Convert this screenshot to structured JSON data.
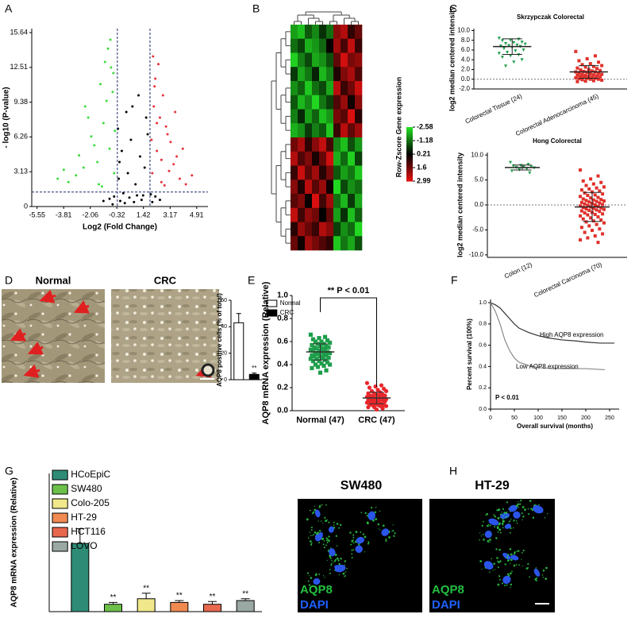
{
  "panel_labels": [
    "A",
    "B",
    "C",
    "D",
    "E",
    "F",
    "G",
    "H"
  ],
  "images": {
    "D": {
      "titles": [
        "Normal",
        "CRC"
      ]
    },
    "H": {
      "titles": [
        "SW480",
        "HT-29"
      ],
      "stains": [
        "AQP8",
        "DAPI"
      ]
    }
  },
  "chart_data": [
    {
      "type": "scatter",
      "xlabel": "Log2 (Fold Change)",
      "ylabel": "- log10 (P-value)",
      "xlim": [
        -5.9,
        5.65
      ],
      "ylim": [
        0,
        16.0
      ],
      "xticks": [
        -5.55,
        -3.81,
        -2.06,
        -0.32,
        1.42,
        3.17,
        4.91
      ],
      "yticks": [
        0,
        3.13,
        6.26,
        9.38,
        12.51,
        15.64
      ],
      "vlines": [
        -0.29,
        1.85
      ],
      "hline": 1.3,
      "threshold_color": "#1a2a6c",
      "series": [
        {
          "color": "#000000",
          "x": [
            -0.1,
            0.2,
            0.5,
            0.8,
            1.0,
            1.3,
            -0.2,
            0.4,
            0.9,
            1.5,
            0.0,
            0.6,
            1.2,
            -0.25,
            1.7,
            0.3,
            0.7,
            1.1,
            -0.5,
            1.9,
            -0.8,
            2.2,
            -1.2,
            2.5,
            -0.6,
            2.0,
            0.1,
            1.4,
            -0.15,
            1.6
          ],
          "values": [
            0.5,
            0.3,
            0.8,
            0.4,
            1.0,
            0.6,
            2.5,
            3.0,
            2.0,
            3.5,
            5.0,
            6.0,
            4.5,
            7.0,
            6.5,
            8.5,
            9.0,
            10.0,
            0.9,
            1.1,
            0.7,
            0.9,
            0.5,
            0.6,
            0.2,
            0.4,
            1.2,
            1.0,
            4.0,
            8.0
          ]
        },
        {
          "color": "#3ddc3d",
          "x": [
            -0.5,
            -0.8,
            -1.2,
            -1.6,
            -2.0,
            -2.5,
            -3.0,
            -3.5,
            -1.0,
            -1.4,
            -0.7,
            -2.2,
            -0.9,
            -1.8,
            -0.6,
            -2.8,
            -1.1,
            -3.8,
            -0.45,
            -1.5,
            -2.4,
            -0.75,
            -1.3,
            -0.55,
            -4.2
          ],
          "values": [
            3.0,
            5.2,
            7.5,
            4.0,
            6.3,
            3.5,
            2.8,
            2.2,
            9.5,
            11.0,
            12.5,
            8.0,
            14.2,
            5.5,
            10.3,
            4.6,
            13.0,
            3.3,
            6.8,
            2.0,
            9.0,
            15.0,
            1.8,
            12.0,
            2.5
          ]
        },
        {
          "color": "#e8303a",
          "x": [
            2.0,
            2.3,
            2.6,
            3.0,
            3.4,
            3.8,
            4.2,
            2.1,
            2.5,
            2.9,
            3.2,
            2.2,
            2.7,
            3.6,
            4.6,
            2.05,
            2.4,
            3.1,
            1.95,
            2.8,
            3.5,
            2.15,
            2.6,
            4.0,
            2.3
          ],
          "values": [
            3.0,
            5.0,
            4.2,
            6.5,
            3.8,
            2.5,
            2.0,
            9.0,
            8.0,
            7.2,
            5.8,
            11.5,
            10.0,
            4.5,
            2.8,
            13.5,
            12.8,
            3.2,
            6.0,
            1.9,
            8.5,
            10.8,
            2.2,
            5.2,
            7.5
          ]
        }
      ]
    },
    {
      "type": "heatmap",
      "colorbar_label": "Row-Zscore Gene expression",
      "colorlim": [
        -2.58,
        2.99
      ],
      "colorbar_ticks": [
        -2.58,
        -1.18,
        0.21,
        1.6,
        2.99
      ],
      "colors": [
        "#22dd22",
        "#000000",
        "#e01010"
      ],
      "matrix": [
        [
          -1.8,
          -2.2,
          -0.9,
          -1.5,
          -0.4,
          -1.2,
          1.9,
          2.4,
          0.8,
          1.5
        ],
        [
          -1.2,
          -0.6,
          -2.0,
          -1.7,
          -1.1,
          0.3,
          2.2,
          1.1,
          2.6,
          0.9
        ],
        [
          -2.4,
          -1.4,
          -0.7,
          -1.9,
          -1.6,
          -0.8,
          1.4,
          2.8,
          1.7,
          2.0
        ],
        [
          -0.5,
          -1.9,
          -1.3,
          -0.2,
          -2.1,
          -1.4,
          0.6,
          1.8,
          2.3,
          1.2
        ],
        [
          -1.6,
          -1.0,
          -2.3,
          -1.2,
          -0.7,
          -1.9,
          2.5,
          0.9,
          1.6,
          2.7
        ],
        [
          -0.9,
          -2.1,
          -1.5,
          -2.5,
          -1.3,
          -0.6,
          1.2,
          2.1,
          0.4,
          1.9
        ],
        [
          -1.4,
          -0.3,
          -1.8,
          -1.0,
          -2.2,
          -1.7,
          1.7,
          1.3,
          2.9,
          0.7
        ],
        [
          -2.0,
          -1.6,
          -0.5,
          -1.4,
          -0.9,
          -2.3,
          0.9,
          2.5,
          1.4,
          2.2
        ],
        [
          1.6,
          2.3,
          0.8,
          1.9,
          2.6,
          1.1,
          -1.5,
          -2.2,
          -0.8,
          -1.7
        ],
        [
          2.4,
          1.2,
          1.8,
          0.5,
          1.5,
          2.8,
          -2.0,
          -1.1,
          -2.4,
          -0.6
        ],
        [
          0.9,
          2.7,
          1.4,
          2.2,
          0.7,
          1.7,
          -0.9,
          -1.8,
          -1.3,
          -2.3
        ],
        [
          1.9,
          0.6,
          2.5,
          1.3,
          2.1,
          0.4,
          -2.5,
          -0.7,
          -1.6,
          -1.2
        ],
        [
          1.3,
          1.8,
          0.3,
          2.9,
          1.0,
          2.2,
          -1.2,
          -2.1,
          -0.5,
          -1.9
        ],
        [
          2.6,
          1.0,
          2.0,
          1.6,
          0.2,
          1.4,
          -1.8,
          -0.4,
          -2.2,
          -1.0
        ],
        [
          0.7,
          2.1,
          1.5,
          0.9,
          2.4,
          1.9,
          -0.6,
          -1.6,
          -1.1,
          -2.5
        ],
        [
          1.5,
          0.4,
          2.2,
          1.7,
          1.2,
          0.8,
          -2.3,
          -1.3,
          -1.9,
          -0.8
        ]
      ]
    },
    {
      "type": "strip",
      "title": "Skrzypczak Colorectal",
      "ylabel": "log2 median centered intensity",
      "categories": [
        "Colorectal Tissue (24)",
        "Colorectal Adenocarcinoma (45)"
      ],
      "ylim": [
        -2,
        10.4
      ],
      "hline": 0,
      "summary_color": "#222222",
      "yticks": [
        {
          "value": -2,
          "label": "-2.0"
        },
        {
          "value": 0,
          "label": "0.0"
        },
        {
          "value": 2,
          "label": "2.0"
        },
        {
          "value": 4,
          "label": "4.0"
        },
        {
          "value": 6,
          "label": "6.0"
        },
        {
          "value": 8,
          "label": "8.0"
        },
        {
          "value": 10,
          "label": "10.0"
        }
      ],
      "series": [
        {
          "color": "#1e9e4a",
          "marker": "triangle",
          "mean": 6.7,
          "sd": 1.6,
          "values": [
            8.4,
            8.2,
            8.0,
            7.9,
            7.6,
            7.5,
            7.3,
            7.2,
            7.0,
            6.9,
            6.8,
            6.7,
            6.5,
            6.3,
            6.0,
            5.8,
            5.5,
            5.3,
            5.0,
            4.8,
            4.5,
            4.0,
            3.5,
            2.7
          ]
        },
        {
          "color": "#e0302a",
          "marker": "square",
          "mean": 1.5,
          "sd": 1.3,
          "values": [
            5.7,
            4.8,
            4.2,
            3.8,
            3.5,
            3.2,
            3.0,
            2.8,
            2.6,
            2.5,
            2.3,
            2.2,
            2.0,
            1.9,
            1.8,
            1.7,
            1.6,
            1.5,
            1.5,
            1.4,
            1.3,
            1.2,
            1.1,
            1.0,
            1.0,
            0.9,
            0.8,
            0.8,
            0.7,
            0.6,
            0.6,
            0.5,
            0.4,
            0.4,
            0.3,
            0.2,
            0.2,
            0.1,
            0.0,
            0.0,
            -0.1,
            -0.2,
            -0.3,
            -0.4,
            -0.5
          ]
        }
      ]
    },
    {
      "type": "strip",
      "title": "Hong Colorectal",
      "ylabel": "log2 median centered intensity",
      "categories": [
        "Colon (12)",
        "Colorectal Carcinoma (70)"
      ],
      "ylim": [
        -10.5,
        10.5
      ],
      "hline": 0,
      "summary_color": "#222222",
      "yticks": [
        {
          "value": -10,
          "label": "-10.0"
        },
        {
          "value": -5,
          "label": "-5.0"
        },
        {
          "value": 0,
          "label": "0.0"
        },
        {
          "value": 5,
          "label": "5.0"
        },
        {
          "value": 10,
          "label": "10.0"
        }
      ],
      "series": [
        {
          "color": "#1e9e4a",
          "marker": "triangle",
          "mean": 7.5,
          "sd": 0.5,
          "values": [
            8.5,
            8.1,
            7.9,
            7.8,
            7.7,
            7.6,
            7.5,
            7.4,
            7.2,
            7.0,
            6.8,
            6.4
          ]
        },
        {
          "color": "#e0302a",
          "marker": "square",
          "mean": -0.4,
          "sd": 2.9,
          "values": [
            7.0,
            5.8,
            5.2,
            4.8,
            4.5,
            4.2,
            3.9,
            3.6,
            3.4,
            3.2,
            3.0,
            2.8,
            2.6,
            2.4,
            2.2,
            2.0,
            1.9,
            1.7,
            1.5,
            1.4,
            1.2,
            1.1,
            1.0,
            0.9,
            0.8,
            0.7,
            0.6,
            0.5,
            0.4,
            0.3,
            0.2,
            0.1,
            0.0,
            -0.1,
            -0.2,
            -0.3,
            -0.4,
            -0.5,
            -0.6,
            -0.7,
            -0.8,
            -0.9,
            -1.0,
            -1.1,
            -1.2,
            -1.3,
            -1.5,
            -1.6,
            -1.8,
            -1.9,
            -2.0,
            -2.2,
            -2.4,
            -2.6,
            -2.8,
            -3.0,
            -3.2,
            -3.4,
            -3.6,
            -3.9,
            -4.2,
            -4.5,
            -4.8,
            -5.1,
            -5.5,
            -5.8,
            -6.2,
            -6.6,
            -7.0,
            -7.5
          ]
        }
      ]
    },
    {
      "type": "bar",
      "ylabel": "AQP8 positive cells (% of total)",
      "legend": "right",
      "categories": [
        "Normal",
        "CRC"
      ],
      "values": [
        43,
        4
      ],
      "errors": [
        7,
        1
      ],
      "colors": [
        "#ffffff",
        "#000000"
      ],
      "significance": [
        null,
        "**"
      ],
      "ylim": [
        0,
        60
      ],
      "yticks": [
        0,
        20,
        40,
        60
      ]
    },
    {
      "type": "strip",
      "ylabel": "AQP8 mRNA expression (Relative)",
      "categories": [
        "Normal (47)",
        "CRC (47)"
      ],
      "annotation": "** P < 0.01",
      "ylim": [
        0,
        1.0
      ],
      "summary_color": "#333333",
      "yticks": [
        {
          "value": 0,
          "label": "0.0"
        },
        0.2,
        0.4,
        0.6,
        0.8,
        {
          "value": 1,
          "label": "1.0"
        }
      ],
      "series": [
        {
          "color": "#1e9e4a",
          "marker": "square",
          "mean": 0.51,
          "sd": 0.07,
          "values": [
            0.66,
            0.64,
            0.63,
            0.62,
            0.61,
            0.6,
            0.6,
            0.59,
            0.58,
            0.58,
            0.57,
            0.56,
            0.56,
            0.55,
            0.55,
            0.54,
            0.54,
            0.53,
            0.53,
            0.52,
            0.52,
            0.51,
            0.51,
            0.5,
            0.5,
            0.49,
            0.49,
            0.48,
            0.48,
            0.47,
            0.47,
            0.46,
            0.46,
            0.45,
            0.45,
            0.44,
            0.43,
            0.43,
            0.42,
            0.41,
            0.4,
            0.4,
            0.39,
            0.38,
            0.37,
            0.35,
            0.33
          ]
        },
        {
          "color": "#e8262a",
          "marker": "circle",
          "mean": 0.11,
          "sd": 0.05,
          "values": [
            0.24,
            0.22,
            0.21,
            0.2,
            0.19,
            0.18,
            0.17,
            0.17,
            0.16,
            0.15,
            0.15,
            0.14,
            0.14,
            0.13,
            0.13,
            0.13,
            0.12,
            0.12,
            0.12,
            0.11,
            0.11,
            0.11,
            0.1,
            0.1,
            0.1,
            0.1,
            0.09,
            0.09,
            0.09,
            0.08,
            0.08,
            0.08,
            0.07,
            0.07,
            0.07,
            0.06,
            0.06,
            0.06,
            0.05,
            0.05,
            0.05,
            0.04,
            0.04,
            0.03,
            0.03,
            0.02,
            0.01
          ]
        }
      ]
    },
    {
      "type": "line",
      "xlabel": "Overall survival (months)",
      "ylabel": "Percent survival (100%)",
      "annotations": [
        "High AQP8 expression",
        "Low AQP8 expression",
        "P < 0.01"
      ],
      "xlim": [
        0,
        270
      ],
      "ylim": [
        0,
        1.03
      ],
      "xticks": [
        0,
        50,
        100,
        150,
        200,
        250
      ],
      "yticks": [
        {
          "value": 0,
          "label": "0.0"
        },
        0.2,
        0.4,
        0.6,
        0.8,
        {
          "value": 1,
          "label": "1.0"
        }
      ],
      "series": [
        {
          "color": "#333333",
          "x": [
            0,
            10,
            20,
            30,
            40,
            50,
            60,
            80,
            100,
            120,
            150,
            180,
            200,
            230,
            260
          ],
          "values": [
            1.0,
            0.98,
            0.95,
            0.9,
            0.85,
            0.8,
            0.76,
            0.72,
            0.69,
            0.67,
            0.65,
            0.64,
            0.63,
            0.62,
            0.62
          ]
        },
        {
          "color": "#8a8a8a",
          "x": [
            0,
            10,
            20,
            30,
            40,
            50,
            60,
            80,
            100,
            130,
            160,
            200,
            240
          ],
          "values": [
            1.0,
            0.92,
            0.8,
            0.65,
            0.55,
            0.48,
            0.44,
            0.41,
            0.39,
            0.38,
            0.38,
            0.38,
            0.37
          ]
        }
      ]
    },
    {
      "type": "bar",
      "ylabel": "AQP8 mRNA expression (Relative)",
      "legend": "top-left",
      "categories": [
        "HCoEpiC",
        "SW480",
        "Colo-205",
        "HT-29",
        "HCT116",
        "LOVO"
      ],
      "values": [
        0.37,
        0.04,
        0.07,
        0.05,
        0.04,
        0.06
      ],
      "errors": [
        0.08,
        0.01,
        0.03,
        0.01,
        0.015,
        0.01
      ],
      "colors": [
        "#2e8b76",
        "#6cc04a",
        "#f0e88a",
        "#f08a50",
        "#e8684e",
        "#9aa8a4"
      ],
      "significance": [
        null,
        "**",
        "**",
        "**",
        "**",
        "**"
      ],
      "ylim": [
        0,
        0.75
      ]
    }
  ]
}
